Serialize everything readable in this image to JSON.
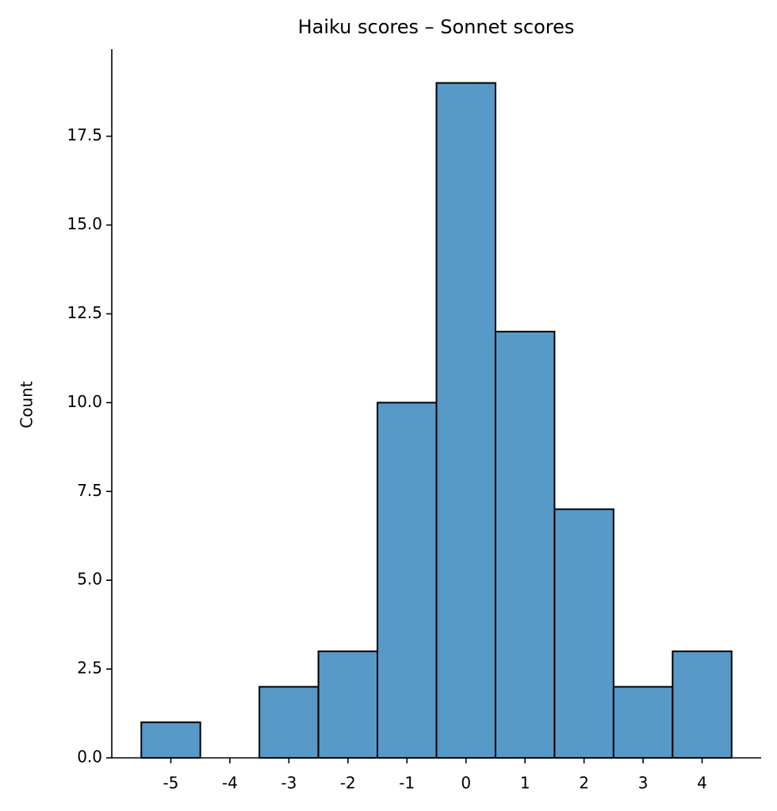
{
  "chart_data": {
    "type": "histogram",
    "title": "Haiku scores – Sonnet scores",
    "y_label": "Count",
    "bins": [
      -5.5,
      -4.5,
      -3.5,
      -2.5,
      -1.5,
      -0.5,
      0.5,
      1.5,
      2.5,
      3.5,
      4.5
    ],
    "counts": [
      1,
      0,
      2,
      3,
      10,
      19,
      12,
      7,
      2,
      3
    ],
    "color": "#5799c7",
    "edgecolor": "#000000",
    "xlim": [
      -6,
      5
    ],
    "xticks": [
      -5,
      -4,
      -3,
      -2,
      -1,
      0,
      1,
      2,
      3,
      4
    ],
    "ylim": [
      0,
      19.95
    ],
    "yticks": [
      {
        "value": 0,
        "label": "0.0"
      },
      2.5,
      {
        "value": 5,
        "label": "5.0"
      },
      7.5,
      {
        "value": 10,
        "label": "10.0"
      },
      12.5,
      {
        "value": 15,
        "label": "15.0"
      },
      17.5
    ]
  }
}
